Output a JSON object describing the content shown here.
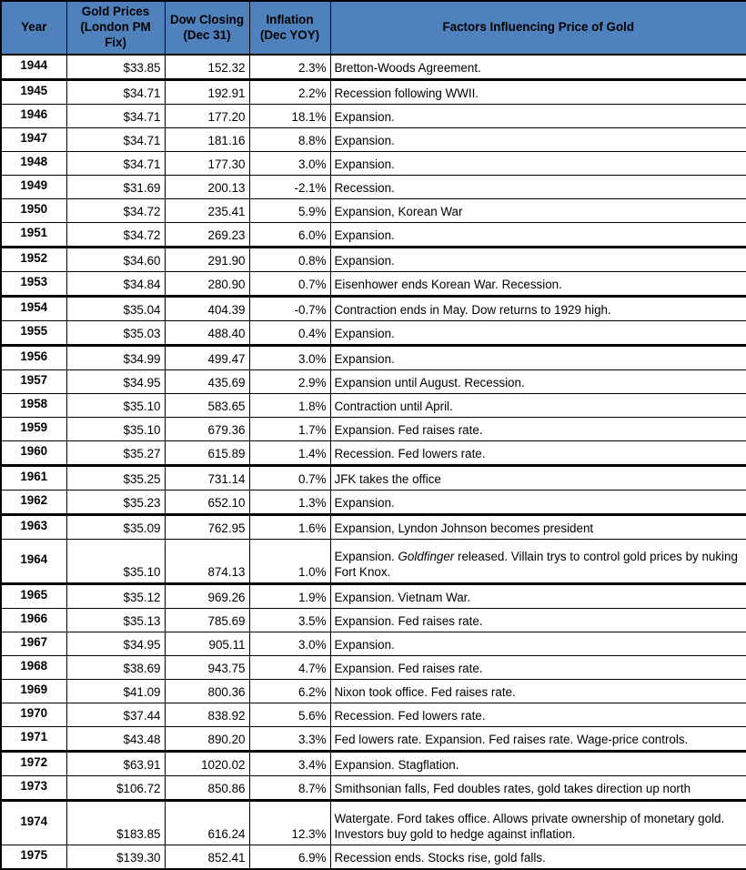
{
  "colors": {
    "header_bg": "#4F81BD",
    "grid_border": "#000000",
    "row_bg": "#FFFFFF",
    "text": "#000000"
  },
  "table": {
    "columns": [
      {
        "id": "year",
        "label": "Year"
      },
      {
        "id": "gold",
        "label": "Gold Prices (London PM Fix)"
      },
      {
        "id": "dow",
        "label": "Dow Closing (Dec 31)"
      },
      {
        "id": "inflation",
        "label": "Inflation (Dec YOY)"
      },
      {
        "id": "factors",
        "label": "Factors Influencing Price of Gold"
      }
    ],
    "rows": [
      {
        "year": "1944",
        "gold": "$33.85",
        "dow": "152.32",
        "inflation": "2.3%",
        "factors": "Bretton-Woods Agreement.",
        "thick_top": false,
        "tall": false
      },
      {
        "year": "1945",
        "gold": "$34.71",
        "dow": "192.91",
        "inflation": "2.2%",
        "factors": "Recession following WWII.",
        "thick_top": true,
        "tall": false
      },
      {
        "year": "1946",
        "gold": "$34.71",
        "dow": "177.20",
        "inflation": "18.1%",
        "factors": "Expansion.",
        "thick_top": false,
        "tall": false
      },
      {
        "year": "1947",
        "gold": "$34.71",
        "dow": "181.16",
        "inflation": "8.8%",
        "factors": "Expansion.",
        "thick_top": false,
        "tall": false
      },
      {
        "year": "1948",
        "gold": "$34.71",
        "dow": "177.30",
        "inflation": "3.0%",
        "factors": "Expansion.",
        "thick_top": false,
        "tall": false
      },
      {
        "year": "1949",
        "gold": "$31.69",
        "dow": "200.13",
        "inflation": "-2.1%",
        "factors": "Recession.",
        "thick_top": false,
        "tall": false
      },
      {
        "year": "1950",
        "gold": "$34.72",
        "dow": "235.41",
        "inflation": "5.9%",
        "factors": "Expansion, Korean War",
        "thick_top": false,
        "tall": false
      },
      {
        "year": "1951",
        "gold": "$34.72",
        "dow": "269.23",
        "inflation": "6.0%",
        "factors": "Expansion.",
        "thick_top": false,
        "tall": false
      },
      {
        "year": "1952",
        "gold": "$34.60",
        "dow": "291.90",
        "inflation": "0.8%",
        "factors": "Expansion.",
        "thick_top": true,
        "tall": false
      },
      {
        "year": "1953",
        "gold": "$34.84",
        "dow": "280.90",
        "inflation": "0.7%",
        "factors": "Eisenhower ends Korean War. Recession.",
        "thick_top": false,
        "tall": false
      },
      {
        "year": "1954",
        "gold": "$35.04",
        "dow": "404.39",
        "inflation": "-0.7%",
        "factors": "Contraction ends in May. Dow returns to 1929 high.",
        "thick_top": true,
        "tall": false
      },
      {
        "year": "1955",
        "gold": "$35.03",
        "dow": "488.40",
        "inflation": "0.4%",
        "factors": "Expansion.",
        "thick_top": false,
        "tall": false
      },
      {
        "year": "1956",
        "gold": "$34.99",
        "dow": "499.47",
        "inflation": "3.0%",
        "factors": "Expansion.",
        "thick_top": true,
        "tall": false
      },
      {
        "year": "1957",
        "gold": "$34.95",
        "dow": "435.69",
        "inflation": "2.9%",
        "factors": "Expansion until August. Recession.",
        "thick_top": false,
        "tall": false
      },
      {
        "year": "1958",
        "gold": "$35.10",
        "dow": "583.65",
        "inflation": "1.8%",
        "factors": "Contraction until April.",
        "thick_top": false,
        "tall": false
      },
      {
        "year": "1959",
        "gold": "$35.10",
        "dow": "679.36",
        "inflation": "1.7%",
        "factors": "Expansion. Fed raises rate.",
        "thick_top": false,
        "tall": false
      },
      {
        "year": "1960",
        "gold": "$35.27",
        "dow": "615.89",
        "inflation": "1.4%",
        "factors": "Recession. Fed lowers rate.",
        "thick_top": false,
        "tall": false
      },
      {
        "year": "1961",
        "gold": "$35.25",
        "dow": "731.14",
        "inflation": "0.7%",
        "factors": "JFK takes the office",
        "thick_top": true,
        "tall": false
      },
      {
        "year": "1962",
        "gold": "$35.23",
        "dow": "652.10",
        "inflation": "1.3%",
        "factors": "Expansion.",
        "thick_top": false,
        "tall": false
      },
      {
        "year": "1963",
        "gold": "$35.09",
        "dow": "762.95",
        "inflation": "1.6%",
        "factors": "Expansion, Lyndon Johnson becomes president",
        "thick_top": true,
        "tall": false
      },
      {
        "year": "1964",
        "gold": "$35.10",
        "dow": "874.13",
        "inflation": "1.0%",
        "factors": "Expansion. *Goldfinger* released. Villain trys to control gold prices by nuking Fort Knox.",
        "thick_top": false,
        "tall": true
      },
      {
        "year": "1965",
        "gold": "$35.12",
        "dow": "969.26",
        "inflation": "1.9%",
        "factors": "Expansion. Vietnam War.",
        "thick_top": true,
        "tall": false
      },
      {
        "year": "1966",
        "gold": "$35.13",
        "dow": "785.69",
        "inflation": "3.5%",
        "factors": "Expansion. Fed raises rate.",
        "thick_top": false,
        "tall": false
      },
      {
        "year": "1967",
        "gold": "$34.95",
        "dow": "905.11",
        "inflation": "3.0%",
        "factors": "Expansion.",
        "thick_top": false,
        "tall": false
      },
      {
        "year": "1968",
        "gold": "$38.69",
        "dow": "943.75",
        "inflation": "4.7%",
        "factors": "Expansion. Fed raises rate.",
        "thick_top": false,
        "tall": false
      },
      {
        "year": "1969",
        "gold": "$41.09",
        "dow": "800.36",
        "inflation": "6.2%",
        "factors": "Nixon took office. Fed raises rate.",
        "thick_top": false,
        "tall": false
      },
      {
        "year": "1970",
        "gold": "$37.44",
        "dow": "838.92",
        "inflation": "5.6%",
        "factors": "Recession. Fed lowers rate.",
        "thick_top": false,
        "tall": false
      },
      {
        "year": "1971",
        "gold": "$43.48",
        "dow": "890.20",
        "inflation": "3.3%",
        "factors": "Fed lowers rate. Expansion. Fed raises rate. Wage-price controls.",
        "thick_top": false,
        "tall": false
      },
      {
        "year": "1972",
        "gold": "$63.91",
        "dow": "1020.02",
        "inflation": "3.4%",
        "factors": "Expansion. Stagflation.",
        "thick_top": true,
        "tall": false
      },
      {
        "year": "1973",
        "gold": "$106.72",
        "dow": "850.86",
        "inflation": "8.7%",
        "factors": "Smithsonian falls, Fed doubles rates, gold takes direction up north",
        "thick_top": false,
        "tall": false
      },
      {
        "year": "1974",
        "gold": "$183.85",
        "dow": "616.24",
        "inflation": "12.3%",
        "factors": "Watergate. Ford takes office. Allows private ownership of monetary gold. Investors buy gold to hedge against inflation.",
        "thick_top": true,
        "tall": true
      },
      {
        "year": "1975",
        "gold": "$139.30",
        "dow": "852.41",
        "inflation": "6.9%",
        "factors": "Recession ends. Stocks rise, gold falls.",
        "thick_top": false,
        "tall": false
      }
    ]
  }
}
